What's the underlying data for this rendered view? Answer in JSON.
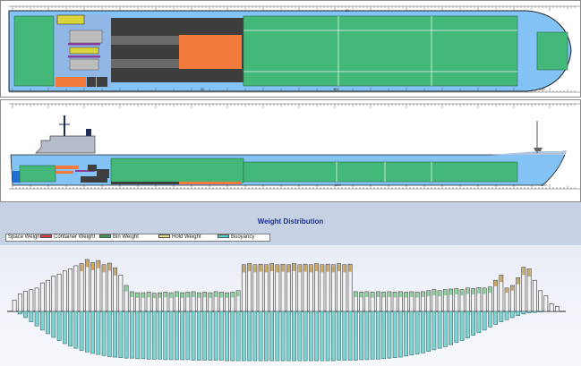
{
  "plan_view": {
    "scale_labels": [
      "50",
      "100",
      "150"
    ]
  },
  "profile_view": {
    "scale_labels": [
      "100",
      "150"
    ]
  },
  "weight_distribution": {
    "title": "Weight Distribution",
    "legend": [
      {
        "label": "Space Weight",
        "color": "#ffffff"
      },
      {
        "label": "Container Weight",
        "color": "#e33b3b"
      },
      {
        "label": "Bin Weight",
        "color": "#3f9a57"
      },
      {
        "label": "Hold Weight",
        "color": "#e3e08a"
      },
      {
        "label": "Buoyancy",
        "color": "#55d4d4"
      }
    ],
    "colors": {
      "hold": "#c8a96a",
      "tank": "#8fcf9c",
      "buoyancy": "#7fd3d3",
      "bar_fill": "#f2f2f2",
      "bar_stroke": "#3a3a3a"
    }
  },
  "chart_data": {
    "type": "bar",
    "title": "Weight Distribution",
    "series_labels": [
      "Space Weight",
      "Container Weight",
      "Bin Weight",
      "Hold Weight",
      "Buoyancy"
    ],
    "weight": [
      0.22,
      0.34,
      0.39,
      0.42,
      0.45,
      0.55,
      0.6,
      0.68,
      0.72,
      0.78,
      0.82,
      0.88,
      0.92,
      1.0,
      0.94,
      0.98,
      0.9,
      0.93,
      0.84,
      0.7,
      0.5,
      0.38,
      0.36,
      0.36,
      0.37,
      0.35,
      0.36,
      0.37,
      0.36,
      0.38,
      0.36,
      0.37,
      0.38,
      0.36,
      0.37,
      0.36,
      0.38,
      0.37,
      0.36,
      0.37,
      0.4,
      0.9,
      0.92,
      0.9,
      0.91,
      0.9,
      0.92,
      0.9,
      0.91,
      0.9,
      0.92,
      0.9,
      0.91,
      0.9,
      0.92,
      0.9,
      0.91,
      0.9,
      0.92,
      0.9,
      0.91,
      0.38,
      0.37,
      0.38,
      0.37,
      0.38,
      0.37,
      0.38,
      0.37,
      0.38,
      0.37,
      0.38,
      0.37,
      0.38,
      0.4,
      0.42,
      0.4,
      0.42,
      0.43,
      0.44,
      0.42,
      0.45,
      0.44,
      0.46,
      0.45,
      0.47,
      0.6,
      0.7,
      0.45,
      0.5,
      0.65,
      0.85,
      0.82,
      0.6,
      0.4,
      0.3,
      0.15,
      0.1
    ],
    "buoyancy": [
      0.0,
      0.05,
      0.12,
      0.2,
      0.28,
      0.36,
      0.43,
      0.5,
      0.56,
      0.62,
      0.67,
      0.71,
      0.75,
      0.78,
      0.81,
      0.83,
      0.85,
      0.87,
      0.88,
      0.89,
      0.9,
      0.9,
      0.91,
      0.91,
      0.92,
      0.92,
      0.92,
      0.93,
      0.93,
      0.93,
      0.93,
      0.93,
      0.94,
      0.94,
      0.94,
      0.94,
      0.94,
      0.94,
      0.95,
      0.95,
      0.95,
      0.95,
      0.95,
      0.95,
      0.95,
      0.95,
      0.95,
      0.95,
      0.95,
      0.95,
      0.95,
      0.95,
      0.95,
      0.95,
      0.95,
      0.95,
      0.95,
      0.95,
      0.94,
      0.94,
      0.94,
      0.94,
      0.93,
      0.93,
      0.92,
      0.92,
      0.91,
      0.9,
      0.89,
      0.88,
      0.86,
      0.84,
      0.82,
      0.8,
      0.77,
      0.74,
      0.71,
      0.68,
      0.64,
      0.6,
      0.56,
      0.51,
      0.46,
      0.41,
      0.36,
      0.3,
      0.25,
      0.2,
      0.16,
      0.12,
      0.08,
      0.05,
      0.03,
      0.02,
      0.01,
      0.0,
      0.0,
      0.0
    ]
  }
}
